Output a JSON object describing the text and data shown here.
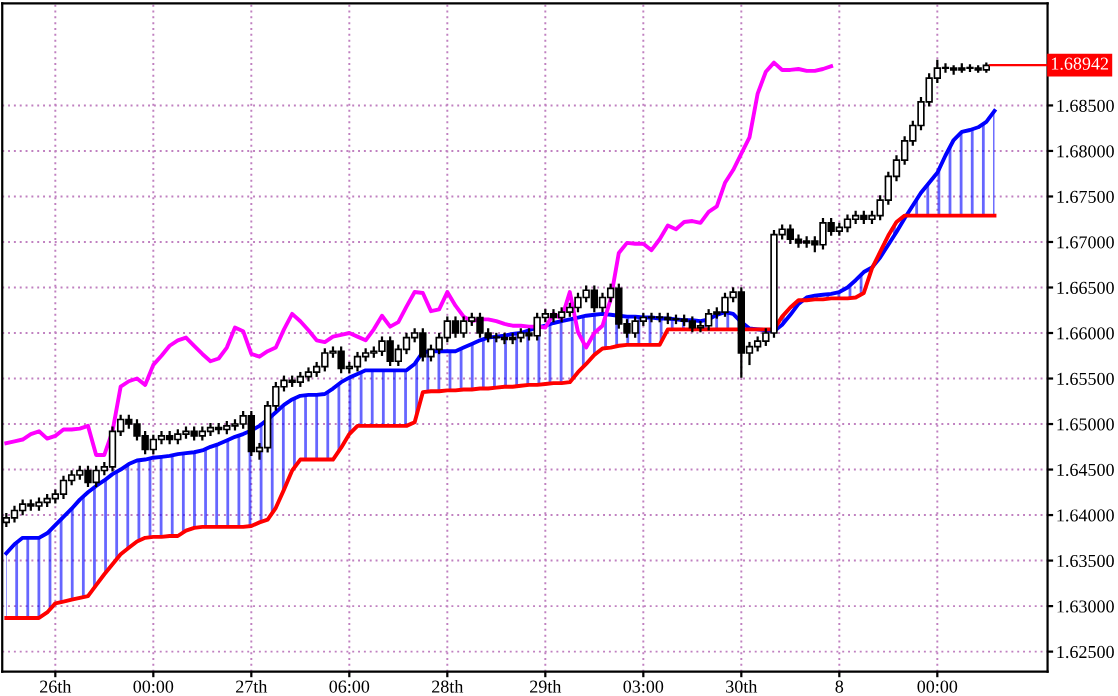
{
  "chart_data": {
    "type": "candlestick",
    "categories": [
      null,
      null,
      null,
      null,
      null,
      null,
      "26th",
      null,
      null,
      null,
      null,
      null,
      null,
      null,
      null,
      null,
      null,
      null,
      "00:00",
      null,
      null,
      null,
      null,
      null,
      null,
      null,
      null,
      null,
      null,
      null,
      "27th",
      null,
      null,
      null,
      null,
      null,
      null,
      null,
      null,
      null,
      null,
      null,
      "06:00",
      null,
      null,
      null,
      null,
      null,
      null,
      null,
      null,
      null,
      null,
      null,
      "28th",
      null,
      null,
      null,
      null,
      null,
      null,
      null,
      null,
      null,
      null,
      null,
      "29th",
      null,
      null,
      null,
      null,
      null,
      null,
      null,
      null,
      null,
      null,
      null,
      "03:00",
      null,
      null,
      null,
      null,
      null,
      null,
      null,
      null,
      null,
      null,
      null,
      "30th",
      null,
      null,
      null,
      null,
      null,
      null,
      null,
      null,
      null,
      null,
      null,
      "8",
      null,
      null,
      null,
      null,
      null,
      null,
      null,
      null,
      null,
      null,
      null,
      "00:00",
      null,
      null,
      null,
      null,
      null,
      null,
      null,
      null,
      null,
      null,
      null,
      null,
      null
    ],
    "ohlc": [
      [
        1.6392,
        1.6401,
        1.6388,
        1.6397
      ],
      [
        1.6397,
        1.6409,
        1.6393,
        1.6405
      ],
      [
        1.6405,
        1.6416,
        1.6401,
        1.6412
      ],
      [
        1.6412,
        1.6416,
        1.6406,
        1.641
      ],
      [
        1.641,
        1.6418,
        1.6406,
        1.6414
      ],
      [
        1.6414,
        1.6422,
        1.641,
        1.6418
      ],
      [
        1.6418,
        1.6427,
        1.6414,
        1.6423
      ],
      [
        1.6423,
        1.6442,
        1.6419,
        1.6438
      ],
      [
        1.6438,
        1.6448,
        1.6434,
        1.6444
      ],
      [
        1.6444,
        1.6453,
        1.644,
        1.6449
      ],
      [
        1.6449,
        1.6453,
        1.6432,
        1.6436
      ],
      [
        1.6436,
        1.6453,
        1.6432,
        1.6449
      ],
      [
        1.6449,
        1.6457,
        1.6445,
        1.6453
      ],
      [
        1.6453,
        1.6496,
        1.6449,
        1.6492
      ],
      [
        1.6492,
        1.6509,
        1.6488,
        1.6505
      ],
      [
        1.6505,
        1.6509,
        1.6496,
        1.65
      ],
      [
        1.65,
        1.6504,
        1.6483,
        1.6487
      ],
      [
        1.6487,
        1.6491,
        1.6468,
        1.6472
      ],
      [
        1.6472,
        1.6487,
        1.6468,
        1.6483
      ],
      [
        1.6483,
        1.6491,
        1.6479,
        1.6487
      ],
      [
        1.6487,
        1.6491,
        1.6479,
        1.6483
      ],
      [
        1.6483,
        1.6493,
        1.6479,
        1.6489
      ],
      [
        1.6489,
        1.6496,
        1.6485,
        1.6492
      ],
      [
        1.6492,
        1.6496,
        1.6483,
        1.6487
      ],
      [
        1.6487,
        1.6496,
        1.6483,
        1.6492
      ],
      [
        1.6492,
        1.65,
        1.6488,
        1.6496
      ],
      [
        1.6496,
        1.65,
        1.649,
        1.6494
      ],
      [
        1.6494,
        1.6502,
        1.649,
        1.6498
      ],
      [
        1.6498,
        1.6504,
        1.6494,
        1.65
      ],
      [
        1.65,
        1.6513,
        1.6496,
        1.6509
      ],
      [
        1.6509,
        1.6513,
        1.6466,
        1.647
      ],
      [
        1.647,
        1.6478,
        1.6462,
        1.6474
      ],
      [
        1.6474,
        1.6524,
        1.647,
        1.652
      ],
      [
        1.652,
        1.6545,
        1.6516,
        1.6541
      ],
      [
        1.6541,
        1.6552,
        1.6537,
        1.6548
      ],
      [
        1.6548,
        1.6552,
        1.6542,
        1.6546
      ],
      [
        1.6546,
        1.6556,
        1.6542,
        1.6552
      ],
      [
        1.6552,
        1.6561,
        1.6548,
        1.6557
      ],
      [
        1.6557,
        1.6567,
        1.6553,
        1.6563
      ],
      [
        1.6563,
        1.6582,
        1.6559,
        1.6578
      ],
      [
        1.6578,
        1.6584,
        1.6574,
        1.658
      ],
      [
        1.658,
        1.6584,
        1.6557,
        1.6561
      ],
      [
        1.6561,
        1.6567,
        1.6557,
        1.6563
      ],
      [
        1.6563,
        1.6578,
        1.6559,
        1.6574
      ],
      [
        1.6574,
        1.6582,
        1.657,
        1.6578
      ],
      [
        1.6578,
        1.6584,
        1.6574,
        1.658
      ],
      [
        1.658,
        1.6595,
        1.6576,
        1.6591
      ],
      [
        1.6591,
        1.6595,
        1.6565,
        1.6569
      ],
      [
        1.6569,
        1.6586,
        1.6565,
        1.6582
      ],
      [
        1.6582,
        1.6599,
        1.6578,
        1.6595
      ],
      [
        1.6595,
        1.6604,
        1.6591,
        1.66
      ],
      [
        1.66,
        1.6604,
        1.657,
        1.6574
      ],
      [
        1.6574,
        1.6586,
        1.657,
        1.6582
      ],
      [
        1.6582,
        1.6599,
        1.6578,
        1.6595
      ],
      [
        1.6595,
        1.6617,
        1.6591,
        1.6613
      ],
      [
        1.6613,
        1.6617,
        1.6596,
        1.66
      ],
      [
        1.66,
        1.6617,
        1.6596,
        1.6613
      ],
      [
        1.6613,
        1.6621,
        1.6609,
        1.6617
      ],
      [
        1.6617,
        1.6621,
        1.6596,
        1.66
      ],
      [
        1.66,
        1.6604,
        1.6591,
        1.6595
      ],
      [
        1.6595,
        1.6599,
        1.6591,
        1.6595
      ],
      [
        1.6595,
        1.6599,
        1.6589,
        1.6593
      ],
      [
        1.6593,
        1.6599,
        1.6589,
        1.6595
      ],
      [
        1.6595,
        1.6604,
        1.6591,
        1.66
      ],
      [
        1.66,
        1.6604,
        1.6593,
        1.6597
      ],
      [
        1.6597,
        1.6621,
        1.6593,
        1.6617
      ],
      [
        1.6617,
        1.6625,
        1.6613,
        1.6621
      ],
      [
        1.6621,
        1.6625,
        1.6613,
        1.6617
      ],
      [
        1.6617,
        1.6627,
        1.6613,
        1.6623
      ],
      [
        1.6623,
        1.6632,
        1.6619,
        1.6628
      ],
      [
        1.6628,
        1.6643,
        1.6624,
        1.6639
      ],
      [
        1.6639,
        1.6651,
        1.6635,
        1.6647
      ],
      [
        1.6647,
        1.6651,
        1.6624,
        1.6628
      ],
      [
        1.6628,
        1.6643,
        1.6624,
        1.6639
      ],
      [
        1.6639,
        1.6653,
        1.6635,
        1.6649
      ],
      [
        1.6649,
        1.6653,
        1.6606,
        1.661
      ],
      [
        1.661,
        1.6614,
        1.6596,
        1.66
      ],
      [
        1.66,
        1.6617,
        1.6596,
        1.6613
      ],
      [
        1.6613,
        1.6621,
        1.6609,
        1.6617
      ],
      [
        1.6617,
        1.6621,
        1.6613,
        1.6617
      ],
      [
        1.6617,
        1.6621,
        1.6613,
        1.6617
      ],
      [
        1.6617,
        1.6621,
        1.6611,
        1.6615
      ],
      [
        1.6615,
        1.6619,
        1.6611,
        1.6615
      ],
      [
        1.6615,
        1.6619,
        1.6609,
        1.6613
      ],
      [
        1.6613,
        1.6617,
        1.6602,
        1.6606
      ],
      [
        1.6606,
        1.6612,
        1.6602,
        1.6608
      ],
      [
        1.6608,
        1.6625,
        1.6604,
        1.6621
      ],
      [
        1.6621,
        1.6627,
        1.6617,
        1.6623
      ],
      [
        1.6623,
        1.6643,
        1.6619,
        1.6639
      ],
      [
        1.6639,
        1.6649,
        1.6635,
        1.6645
      ],
      [
        1.6645,
        1.6649,
        1.6552,
        1.6578
      ],
      [
        1.6578,
        1.6589,
        1.6566,
        1.6585
      ],
      [
        1.6585,
        1.6595,
        1.6581,
        1.6591
      ],
      [
        1.6591,
        1.6604,
        1.6587,
        1.66
      ],
      [
        1.66,
        1.6712,
        1.6596,
        1.6708
      ],
      [
        1.6708,
        1.6718,
        1.6704,
        1.6714
      ],
      [
        1.6714,
        1.6718,
        1.6699,
        1.6703
      ],
      [
        1.6703,
        1.6707,
        1.6695,
        1.6699
      ],
      [
        1.6699,
        1.6705,
        1.6695,
        1.6701
      ],
      [
        1.6701,
        1.6705,
        1.669,
        1.6697
      ],
      [
        1.6697,
        1.6725,
        1.6693,
        1.6721
      ],
      [
        1.6721,
        1.6725,
        1.6708,
        1.6712
      ],
      [
        1.6712,
        1.672,
        1.6708,
        1.6716
      ],
      [
        1.6716,
        1.6729,
        1.6712,
        1.6725
      ],
      [
        1.6725,
        1.6733,
        1.6721,
        1.6729
      ],
      [
        1.6729,
        1.6733,
        1.6721,
        1.6725
      ],
      [
        1.6725,
        1.6733,
        1.6721,
        1.6729
      ],
      [
        1.6729,
        1.675,
        1.6725,
        1.6746
      ],
      [
        1.6746,
        1.6776,
        1.6742,
        1.6772
      ],
      [
        1.6772,
        1.6794,
        1.6768,
        1.679
      ],
      [
        1.679,
        1.6815,
        1.6786,
        1.6811
      ],
      [
        1.6811,
        1.6832,
        1.6807,
        1.6828
      ],
      [
        1.6828,
        1.6858,
        1.6824,
        1.6854
      ],
      [
        1.6854,
        1.6884,
        1.685,
        1.688
      ],
      [
        1.688,
        1.6899,
        1.6876,
        1.6891
      ],
      [
        1.6891,
        1.6895,
        1.6887,
        1.6891
      ],
      [
        1.6891,
        1.6893,
        1.6885,
        1.6889
      ],
      [
        1.6889,
        1.6895,
        1.6887,
        1.6891
      ],
      [
        1.6891,
        1.6894,
        1.6888,
        1.6891
      ],
      [
        1.6891,
        1.6893,
        1.6887,
        1.6889
      ],
      [
        1.6889,
        1.6896,
        1.6887,
        1.6894
      ],
      null,
      null,
      null,
      null,
      null,
      null,
      null
    ],
    "ylim": [
      1.6228,
      1.6962
    ],
    "yticks": [
      {
        "value": 1.625,
        "label": "1.62500"
      },
      {
        "value": 1.63,
        "label": "1.63000"
      },
      {
        "value": 1.635,
        "label": "1.63500"
      },
      {
        "value": 1.64,
        "label": "1.64000"
      },
      {
        "value": 1.645,
        "label": "1.64500"
      },
      {
        "value": 1.65,
        "label": "1.65000"
      },
      {
        "value": 1.655,
        "label": "1.65500"
      },
      {
        "value": 1.66,
        "label": "1.66000"
      },
      {
        "value": 1.665,
        "label": "1.66500"
      },
      {
        "value": 1.67,
        "label": "1.67000"
      },
      {
        "value": 1.675,
        "label": "1.67500"
      },
      {
        "value": 1.68,
        "label": "1.68000"
      },
      {
        "value": 1.685,
        "label": "1.68500"
      }
    ],
    "grid": true,
    "ref_lines": [
      {
        "axis": "y",
        "value": 1.68942,
        "label": "1.68942",
        "color": "#ff0000"
      }
    ],
    "series": [
      {
        "type": "line",
        "color": "#0000ff",
        "values": [
          1.6358,
          1.6368,
          1.6375,
          1.6375,
          1.6375,
          1.638,
          1.6389,
          1.6398,
          1.6407,
          1.6417,
          1.6425,
          1.6432,
          1.6438,
          1.6445,
          1.645,
          1.6456,
          1.646,
          1.6461,
          1.6463,
          1.6464,
          1.6465,
          1.6467,
          1.6468,
          1.6469,
          1.6471,
          1.6475,
          1.6478,
          1.6482,
          1.6486,
          1.6489,
          1.6493,
          1.6498,
          1.6505,
          1.6513,
          1.6521,
          1.6527,
          1.6531,
          1.6532,
          1.6532,
          1.6533,
          1.6539,
          1.6546,
          1.6551,
          1.6555,
          1.6559,
          1.6559,
          1.6559,
          1.6559,
          1.6559,
          1.6559,
          1.6566,
          1.6579,
          1.658,
          1.658,
          1.658,
          1.658,
          1.6584,
          1.6588,
          1.6592,
          1.6595,
          1.6596,
          1.6597,
          1.6599,
          1.66,
          1.6603,
          1.6606,
          1.6608,
          1.6611,
          1.6613,
          1.6615,
          1.6617,
          1.6619,
          1.662,
          1.6621,
          1.662,
          1.6619,
          1.6618,
          1.6618,
          1.6617,
          1.6617,
          1.6616,
          1.6616,
          1.6615,
          1.6614,
          1.6614,
          1.6613,
          1.6615,
          1.662,
          1.6623,
          1.6621,
          1.6612,
          1.6605,
          1.6604,
          1.6603,
          1.6602,
          1.6609,
          1.662,
          1.6632,
          1.6639,
          1.6641,
          1.6642,
          1.6643,
          1.6645,
          1.665,
          1.6658,
          1.6667,
          1.6672,
          1.6683,
          1.6697,
          1.6711,
          1.6726,
          1.674,
          1.6754,
          1.6765,
          1.6776,
          1.6795,
          1.6812,
          1.6821,
          1.6823,
          1.6826,
          1.6832,
          1.6844,
          null,
          null,
          null,
          null,
          null,
          null
        ],
        "upper": [
          1.6358,
          1.6368,
          1.6375,
          1.6375,
          1.6375,
          1.638,
          1.6389,
          1.6398,
          1.6407,
          1.6417,
          1.6425,
          1.6432,
          1.6438,
          1.6445,
          1.645,
          1.6456,
          1.646,
          1.6461,
          1.6463,
          1.6464,
          1.6465,
          1.6467,
          1.6468,
          1.6469,
          1.6471,
          1.6475,
          1.6478,
          1.6482,
          1.6486,
          1.6489,
          1.6493,
          1.6498,
          1.6505,
          1.6513,
          1.6521,
          1.6527,
          1.6531,
          1.6532,
          1.6532,
          1.6533,
          1.6539,
          1.6546,
          1.6551,
          1.6555,
          1.6559,
          1.6559,
          1.6559,
          1.6559,
          1.6559,
          1.6559,
          1.6566,
          1.6579,
          1.658,
          1.658,
          1.658,
          1.658,
          1.6584,
          1.6588,
          1.6592,
          1.6595,
          1.6596,
          1.6597,
          1.6599,
          1.66,
          1.6603,
          1.6606,
          1.6608,
          1.6611,
          1.6613,
          1.6615,
          1.6617,
          1.6619,
          1.662,
          1.6621,
          1.662,
          1.6619,
          1.6618,
          1.6618,
          1.6617,
          1.6617,
          1.6616,
          1.6616,
          1.6615,
          1.6614,
          1.6614,
          1.6613,
          1.6615,
          1.662,
          1.6623,
          1.6621,
          1.6612,
          1.6605,
          1.6604,
          1.6603,
          1.6602,
          1.6609,
          1.662,
          1.6632,
          1.6639,
          1.6641,
          1.6642,
          1.6643,
          1.6645,
          1.665,
          1.6658,
          1.6667,
          1.6672,
          1.6683,
          1.6697,
          1.6711,
          1.6726,
          1.674,
          1.6754,
          1.6765,
          1.6776,
          1.6795,
          1.6812,
          1.6821,
          1.6823,
          1.6826,
          1.6832,
          1.6844,
          null,
          null,
          null,
          null,
          null,
          null
        ],
        "lower": [
          1.6287,
          1.6287,
          1.6287,
          1.6287,
          1.6287,
          1.6293,
          1.6303,
          1.6305,
          1.6307,
          1.6309,
          1.6311,
          1.6323,
          1.6335,
          1.6346,
          1.6357,
          1.6364,
          1.6371,
          1.6375,
          1.6376,
          1.6376,
          1.6377,
          1.6377,
          1.6383,
          1.6386,
          1.6387,
          1.6387,
          1.6387,
          1.6387,
          1.6387,
          1.6387,
          1.6388,
          1.6392,
          1.6395,
          1.6408,
          1.6428,
          1.6449,
          1.6461,
          1.6461,
          1.6461,
          1.6461,
          1.6461,
          1.6474,
          1.6489,
          1.6498,
          1.6498,
          1.6498,
          1.6498,
          1.6498,
          1.6498,
          1.6498,
          1.6502,
          1.6535,
          1.6536,
          1.6536,
          1.6537,
          1.6537,
          1.6538,
          1.6538,
          1.6539,
          1.6539,
          1.654,
          1.6541,
          1.6541,
          1.6542,
          1.6543,
          1.6543,
          1.6544,
          1.6545,
          1.6545,
          1.6546,
          1.6557,
          1.6566,
          1.6576,
          1.6583,
          1.6584,
          1.6586,
          1.6587,
          1.6587,
          1.6587,
          1.6587,
          1.6587,
          1.6604,
          1.6604,
          1.6604,
          1.6604,
          1.6604,
          1.6604,
          1.6604,
          1.6604,
          1.6604,
          1.6604,
          1.6604,
          1.6604,
          1.6604,
          1.6604,
          1.6618,
          1.6628,
          1.6636,
          1.6636,
          1.6637,
          1.6637,
          1.6638,
          1.6638,
          1.6638,
          1.6639,
          1.6644,
          1.6671,
          1.6689,
          1.6707,
          1.6722,
          1.6729,
          1.6729,
          1.6729,
          1.6729,
          1.6729,
          1.6729,
          1.6729,
          1.6729,
          1.6729,
          1.6729,
          1.6729,
          1.6729,
          null,
          null,
          null,
          null,
          null,
          null
        ]
      },
      {
        "type": "line",
        "color": "#ff0000",
        "values": [
          1.6287,
          1.6287,
          1.6287,
          1.6287,
          1.6287,
          1.6293,
          1.6303,
          1.6305,
          1.6307,
          1.6309,
          1.6311,
          1.6323,
          1.6335,
          1.6346,
          1.6357,
          1.6364,
          1.6371,
          1.6375,
          1.6376,
          1.6376,
          1.6377,
          1.6377,
          1.6383,
          1.6386,
          1.6387,
          1.6387,
          1.6387,
          1.6387,
          1.6387,
          1.6387,
          1.6388,
          1.6392,
          1.6395,
          1.6408,
          1.6428,
          1.6449,
          1.6461,
          1.6461,
          1.6461,
          1.6461,
          1.6461,
          1.6474,
          1.6489,
          1.6498,
          1.6498,
          1.6498,
          1.6498,
          1.6498,
          1.6498,
          1.6498,
          1.6502,
          1.6535,
          1.6536,
          1.6536,
          1.6537,
          1.6537,
          1.6538,
          1.6538,
          1.6539,
          1.6539,
          1.654,
          1.6541,
          1.6541,
          1.6542,
          1.6543,
          1.6543,
          1.6544,
          1.6545,
          1.6545,
          1.6546,
          1.6557,
          1.6566,
          1.6576,
          1.6583,
          1.6584,
          1.6586,
          1.6587,
          1.6587,
          1.6587,
          1.6587,
          1.6587,
          1.6604,
          1.6604,
          1.6604,
          1.6604,
          1.6604,
          1.6604,
          1.6604,
          1.6604,
          1.6604,
          1.6604,
          1.6604,
          1.6604,
          1.6604,
          1.6604,
          1.6618,
          1.6628,
          1.6636,
          1.6636,
          1.6637,
          1.6637,
          1.6638,
          1.6638,
          1.6638,
          1.6639,
          1.6644,
          1.6671,
          1.6689,
          1.6707,
          1.6722,
          1.6729,
          1.6729,
          1.6729,
          1.6729,
          1.6729,
          1.6729,
          1.6729,
          1.6729,
          1.6729,
          1.6729,
          1.6729,
          1.6729,
          null,
          null,
          null,
          null,
          null,
          null
        ]
      },
      {
        "type": "line",
        "color": "#ff00ff",
        "values": [
          1.6479,
          1.6481,
          1.6483,
          1.6489,
          1.6492,
          1.6484,
          1.6487,
          1.6494,
          1.6494,
          1.6495,
          1.6498,
          1.6466,
          1.6466,
          1.6492,
          1.6541,
          1.6547,
          1.655,
          1.6543,
          1.6565,
          1.6575,
          1.6586,
          1.6592,
          1.6595,
          1.6586,
          1.6577,
          1.6569,
          1.6572,
          1.6584,
          1.6606,
          1.6602,
          1.6577,
          1.6574,
          1.658,
          1.6584,
          1.6604,
          1.6621,
          1.6613,
          1.6603,
          1.6592,
          1.659,
          1.6596,
          1.6598,
          1.66,
          1.6596,
          1.6592,
          1.6604,
          1.6619,
          1.6607,
          1.6612,
          1.6629,
          1.6645,
          1.6644,
          1.6624,
          1.6626,
          1.6645,
          1.663,
          1.6618,
          1.6613,
          1.6615,
          1.6615,
          1.6613,
          1.661,
          1.6608,
          1.6608,
          1.6607,
          1.6607,
          1.6606,
          1.6621,
          1.6616,
          1.6645,
          1.6601,
          1.6584,
          1.66,
          1.6608,
          1.6637,
          1.6688,
          1.6699,
          1.6698,
          1.6698,
          1.6691,
          1.6703,
          1.6718,
          1.6714,
          1.6722,
          1.6723,
          1.6721,
          1.6733,
          1.6739,
          1.6765,
          1.6779,
          1.6797,
          1.6815,
          1.6863,
          1.6887,
          1.6897,
          1.6889,
          1.6889,
          1.689,
          1.6888,
          1.6888,
          1.689,
          1.6893,
          null,
          null,
          null,
          null,
          null,
          null,
          null,
          null,
          null,
          null,
          null,
          null,
          null,
          null,
          null,
          null,
          null,
          null,
          null,
          null,
          null,
          null,
          null,
          null,
          null,
          null
        ]
      }
    ]
  }
}
